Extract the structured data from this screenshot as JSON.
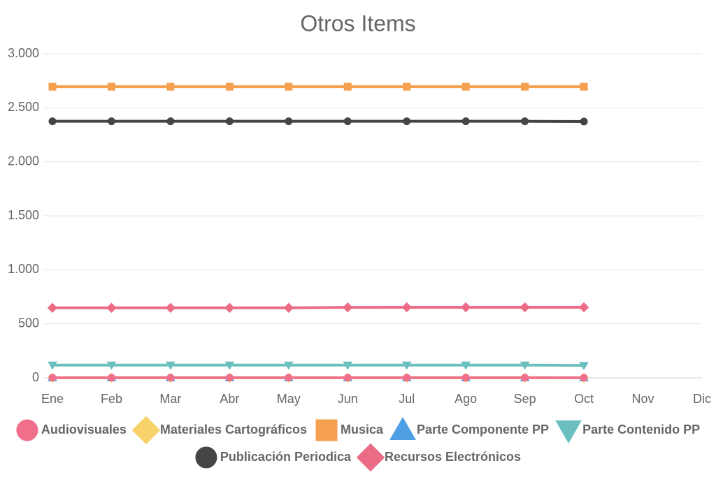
{
  "chart_data": {
    "type": "line",
    "title": "Otros Items",
    "categories": [
      "Ene",
      "Feb",
      "Mar",
      "Abr",
      "May",
      "Jun",
      "Jul",
      "Ago",
      "Sep",
      "Oct",
      "Nov",
      "Dic"
    ],
    "ylim": [
      0,
      3000
    ],
    "yticks": [
      0,
      500,
      {
        "value": 1000,
        "label": "1.000"
      },
      {
        "value": 1500,
        "label": "1.500"
      },
      {
        "value": 2000,
        "label": "2.000"
      },
      {
        "value": 2500,
        "label": "2.500"
      },
      {
        "value": 3000,
        "label": "3.000"
      }
    ],
    "grid": true,
    "legend": "bottom",
    "series": [
      {
        "name": "Audiovisuales",
        "color": "#f0708b",
        "point_style": "circle",
        "values": [
          2,
          2,
          2,
          2,
          2,
          2,
          2,
          2,
          2,
          1,
          null,
          null
        ]
      },
      {
        "name": "Materiales Cartográficos",
        "color": "#f7d16a",
        "point_style": "diamond",
        "values": [
          0,
          0,
          0,
          0,
          0,
          0,
          0,
          0,
          0,
          0,
          null,
          null
        ]
      },
      {
        "name": "Musica",
        "color": "#f4a04f",
        "point_style": "square",
        "values": [
          2695,
          2695,
          2695,
          2695,
          2695,
          2695,
          2695,
          2695,
          2695,
          2695,
          null,
          null
        ]
      },
      {
        "name": "Parte Componente PP",
        "color": "#4e9fe4",
        "point_style": "triangle",
        "values": [
          0,
          0,
          0,
          0,
          0,
          0,
          0,
          0,
          0,
          0,
          null,
          null
        ]
      },
      {
        "name": "Parte Contenido PP",
        "color": "#6bc0bf",
        "point_style": "triangle-down",
        "values": [
          118,
          118,
          118,
          118,
          118,
          118,
          118,
          118,
          118,
          115,
          null,
          null
        ]
      },
      {
        "name": "Publicación Periodica",
        "color": "#434547",
        "point_style": "circle",
        "values": [
          2375,
          2375,
          2375,
          2375,
          2375,
          2375,
          2375,
          2375,
          2375,
          2373,
          null,
          null
        ]
      },
      {
        "name": "Recursos Electrónicos",
        "color": "#ec6c87",
        "point_style": "diamond",
        "values": [
          648,
          648,
          648,
          648,
          648,
          652,
          653,
          653,
          653,
          653,
          null,
          null
        ]
      }
    ]
  }
}
